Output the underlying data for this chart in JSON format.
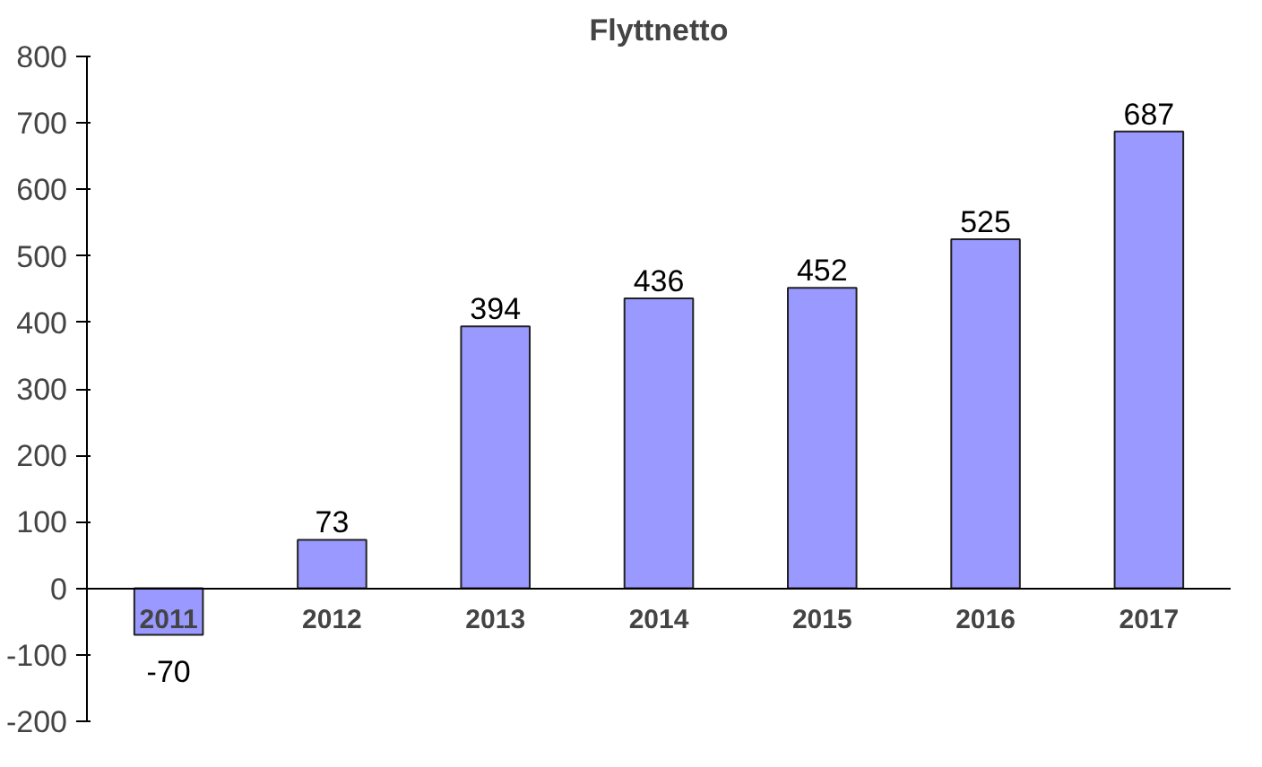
{
  "chart_data": {
    "type": "bar",
    "title": "Flyttnetto",
    "categories": [
      "2011",
      "2012",
      "2013",
      "2014",
      "2015",
      "2016",
      "2017"
    ],
    "values": [
      -70,
      73,
      394,
      436,
      452,
      525,
      687
    ],
    "color": "#9999ff",
    "ylim": [
      -200,
      800
    ],
    "yticks": [
      -200,
      -100,
      0,
      100,
      200,
      300,
      400,
      500,
      600,
      700,
      800
    ],
    "grid": false,
    "data_labels": true
  }
}
